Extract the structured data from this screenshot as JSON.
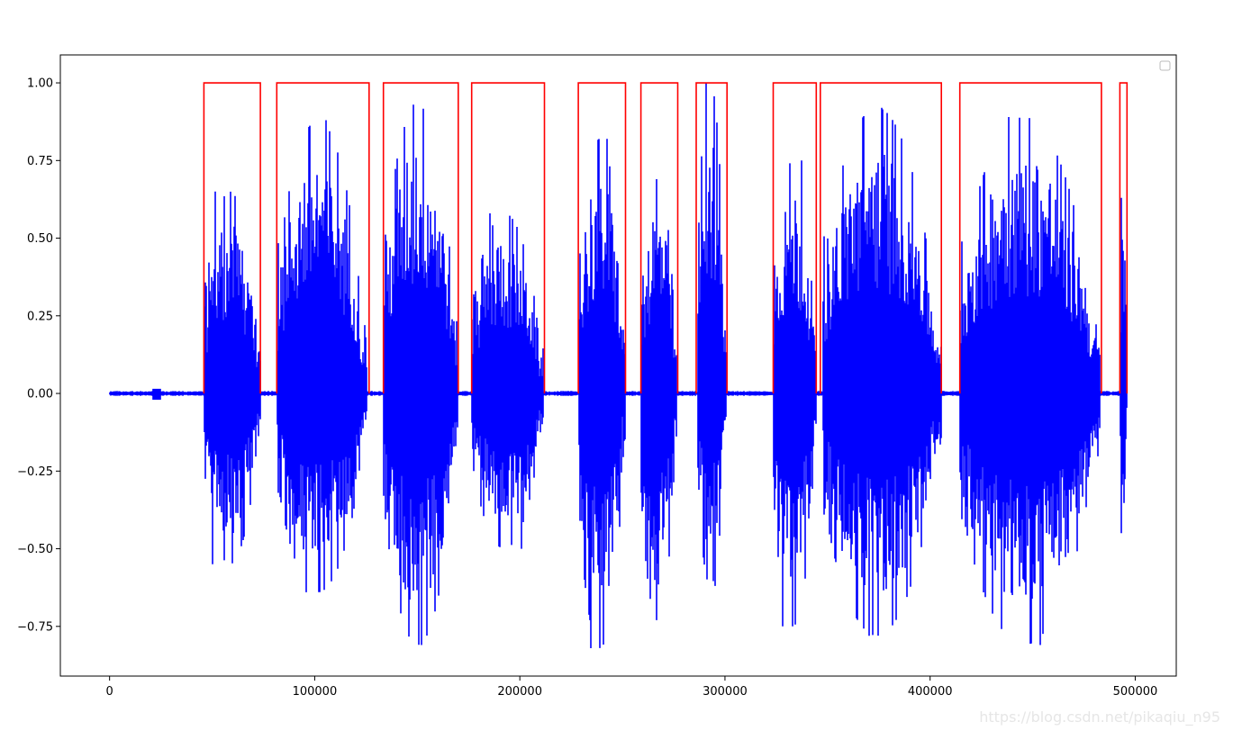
{
  "chart_data": {
    "type": "line",
    "title": "",
    "xlabel": "",
    "ylabel": "",
    "xlim": [
      -24000,
      520000
    ],
    "ylim": [
      -0.91,
      1.09
    ],
    "x_ticks": [
      0,
      100000,
      200000,
      300000,
      400000,
      500000
    ],
    "x_tick_labels": [
      "0",
      "100000",
      "200000",
      "300000",
      "400000",
      "500000"
    ],
    "y_ticks": [
      -0.75,
      -0.5,
      -0.25,
      0.0,
      0.25,
      0.5,
      0.75,
      1.0
    ],
    "y_tick_labels": [
      "−0.75",
      "−0.50",
      "−0.25",
      "0.00",
      "0.25",
      "0.50",
      "0.75",
      "1.00"
    ],
    "grid": false,
    "legend": "top-right (empty)",
    "colors": {
      "signal": "#0000ff",
      "detection": "#ff0000"
    },
    "series": [
      {
        "kind": "waveform",
        "x_range": [
          0,
          496000
        ],
        "segments": [
          {
            "start": 46000,
            "end": 73500,
            "max": 0.65,
            "min": -0.55
          },
          {
            "start": 81500,
            "end": 125500,
            "max": 0.88,
            "min": -0.64
          },
          {
            "start": 133500,
            "end": 170000,
            "max": 0.93,
            "min": -0.81
          },
          {
            "start": 176500,
            "end": 211500,
            "max": 0.58,
            "min": -0.5
          },
          {
            "start": 228500,
            "end": 251500,
            "max": 0.82,
            "min": -0.82
          },
          {
            "start": 259000,
            "end": 276500,
            "max": 0.69,
            "min": -0.73
          },
          {
            "start": 286500,
            "end": 300500,
            "max": 1.0,
            "min": -0.62
          },
          {
            "start": 323500,
            "end": 344500,
            "max": 0.75,
            "min": -0.75
          },
          {
            "start": 347500,
            "end": 405500,
            "max": 0.92,
            "min": -0.78
          },
          {
            "start": 414500,
            "end": 483000,
            "max": 0.89,
            "min": -0.81
          },
          {
            "start": 492500,
            "end": 496000,
            "max": 0.63,
            "min": -0.45
          }
        ]
      },
      {
        "kind": "step",
        "low": 0.0,
        "high": 1.0,
        "intervals": [
          [
            46000,
            73500
          ],
          [
            81500,
            126500
          ],
          [
            133500,
            170000
          ],
          [
            176500,
            212000
          ],
          [
            228500,
            251500
          ],
          [
            259000,
            277000
          ],
          [
            286000,
            301000
          ],
          [
            323500,
            344500
          ],
          [
            346500,
            405500
          ],
          [
            414500,
            483500
          ],
          [
            492500,
            496000
          ]
        ]
      }
    ]
  },
  "watermark": "https://blog.csdn.net/pikaqiu_n95"
}
